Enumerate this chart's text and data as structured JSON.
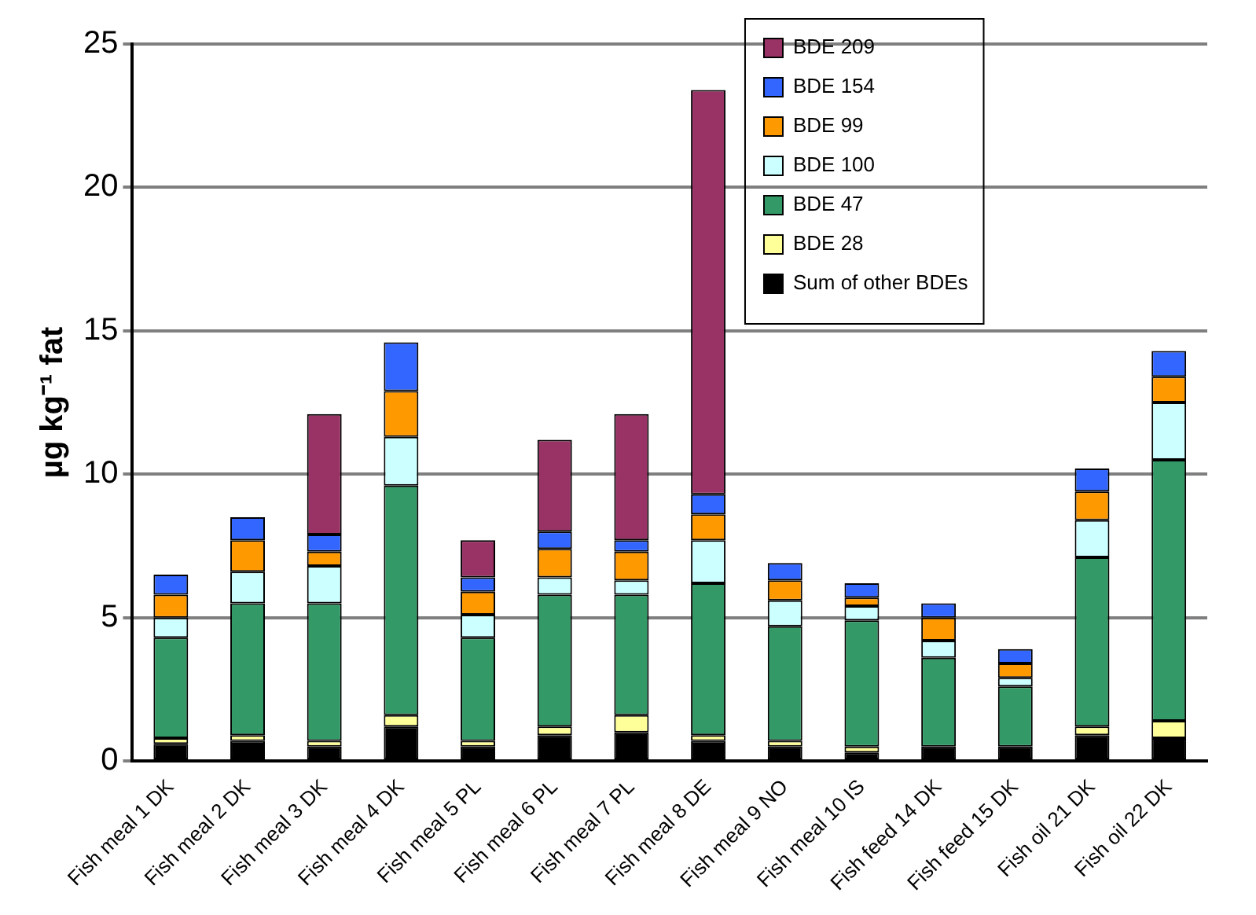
{
  "chart_data": {
    "type": "bar",
    "stacked": true,
    "ylabel": "µg kg⁻¹ fat",
    "categories": [
      "Fish meal 1 DK",
      "Fish meal 2 DK",
      "Fish meal 3 DK",
      "Fish meal 4 DK",
      "Fish meal 5 PL",
      "Fish meal 6 PL",
      "Fish meal 7 PL",
      "Fish meal 8 DE",
      "Fish meal 9 NO",
      "Fish meal 10 IS",
      "Fish feed 14 DK",
      "Fish feed 15 DK",
      "Fish oil 21 DK",
      "Fish oil 22 DK"
    ],
    "series": [
      {
        "name": "Sum of other BDEs",
        "color": "#000000",
        "values": [
          0.6,
          0.7,
          0.5,
          1.2,
          0.5,
          0.9,
          1.0,
          0.7,
          0.5,
          0.3,
          0.5,
          0.5,
          0.9,
          0.8
        ]
      },
      {
        "name": "BDE 28",
        "color": "#ffff99",
        "values": [
          0.2,
          0.2,
          0.2,
          0.4,
          0.2,
          0.3,
          0.6,
          0.2,
          0.2,
          0.2,
          null,
          null,
          0.3,
          0.6
        ]
      },
      {
        "name": "BDE 47",
        "color": "#339966",
        "values": [
          3.5,
          4.6,
          4.8,
          8.0,
          3.6,
          4.6,
          4.2,
          5.3,
          4.0,
          4.4,
          3.1,
          2.1,
          5.9,
          9.1
        ]
      },
      {
        "name": "BDE 100",
        "color": "#ccffff",
        "values": [
          0.7,
          1.1,
          1.3,
          1.7,
          0.8,
          0.6,
          0.5,
          1.5,
          0.9,
          0.5,
          0.6,
          0.3,
          1.3,
          2.0
        ]
      },
      {
        "name": "BDE 99",
        "color": "#ff9900",
        "values": [
          0.8,
          1.1,
          0.5,
          1.6,
          0.8,
          1.0,
          1.0,
          0.9,
          0.7,
          0.3,
          0.8,
          0.5,
          1.0,
          0.9
        ]
      },
      {
        "name": "BDE 154",
        "color": "#3366ff",
        "values": [
          0.7,
          0.8,
          0.6,
          1.7,
          0.5,
          0.6,
          0.4,
          0.7,
          0.6,
          0.5,
          0.5,
          0.5,
          0.8,
          0.9
        ]
      },
      {
        "name": "BDE 209",
        "color": "#993366",
        "values": [
          null,
          null,
          4.2,
          null,
          1.3,
          3.2,
          4.4,
          14.1,
          null,
          null,
          null,
          null,
          null,
          null
        ]
      }
    ],
    "ylim": [
      0,
      25
    ],
    "yticks": [
      0,
      5,
      10,
      15,
      20,
      25
    ],
    "grid": "y",
    "legend": "top right"
  }
}
